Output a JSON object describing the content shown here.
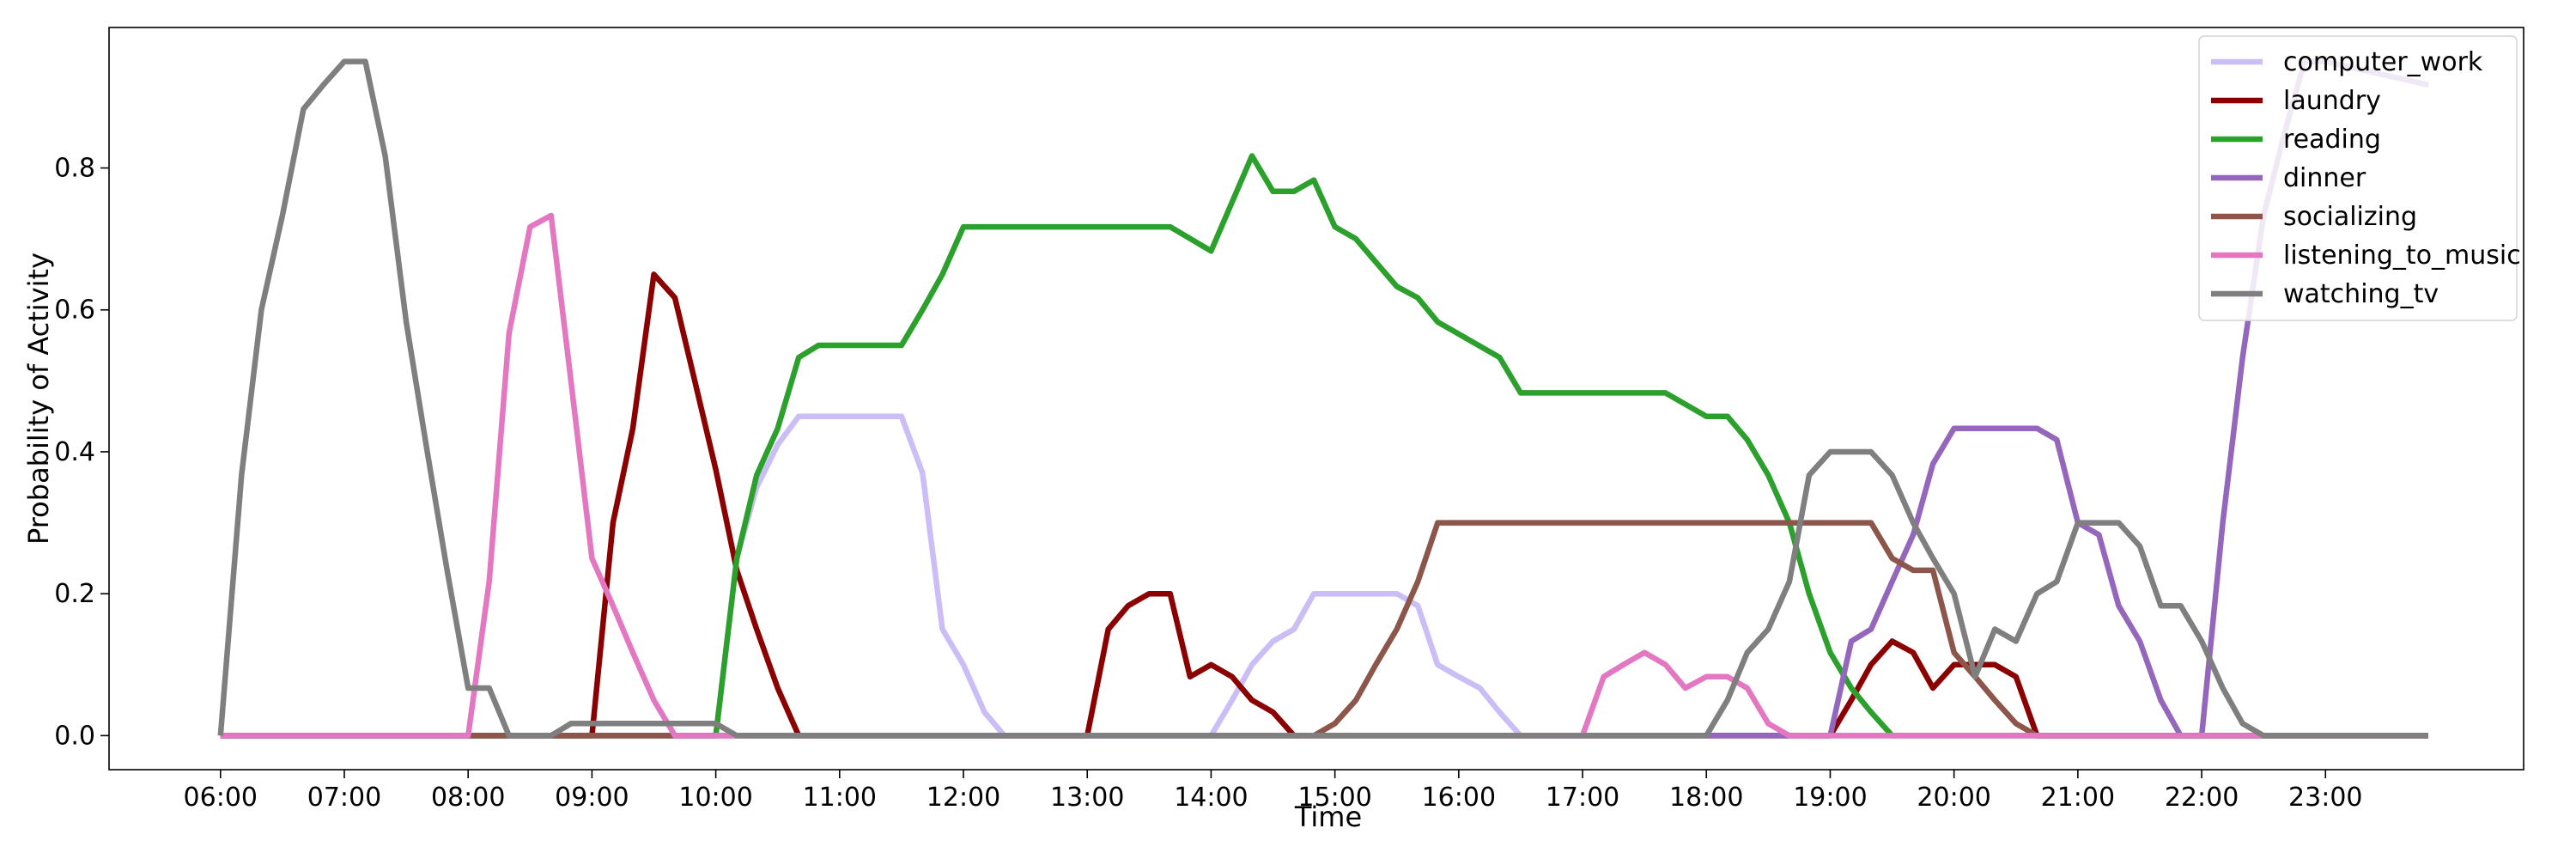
{
  "chart_data": {
    "type": "line",
    "title": "",
    "xlabel": "Time",
    "ylabel": "Probability of Activity",
    "x_unit": "hour_of_day",
    "xlim": [
      5.1,
      24.6
    ],
    "ylim": [
      -0.048,
      0.998
    ],
    "x_ticks": [
      {
        "value": 6,
        "label": "06:00"
      },
      {
        "value": 7,
        "label": "07:00"
      },
      {
        "value": 8,
        "label": "08:00"
      },
      {
        "value": 9,
        "label": "09:00"
      },
      {
        "value": 10,
        "label": "10:00"
      },
      {
        "value": 11,
        "label": "11:00"
      },
      {
        "value": 12,
        "label": "12:00"
      },
      {
        "value": 13,
        "label": "13:00"
      },
      {
        "value": 14,
        "label": "14:00"
      },
      {
        "value": 15,
        "label": "15:00"
      },
      {
        "value": 16,
        "label": "16:00"
      },
      {
        "value": 17,
        "label": "17:00"
      },
      {
        "value": 18,
        "label": "18:00"
      },
      {
        "value": 19,
        "label": "19:00"
      },
      {
        "value": 20,
        "label": "20:00"
      },
      {
        "value": 21,
        "label": "21:00"
      },
      {
        "value": 22,
        "label": "22:00"
      },
      {
        "value": 23,
        "label": "23:00"
      }
    ],
    "y_ticks": [
      {
        "value": 0.0,
        "label": "0.0"
      },
      {
        "value": 0.2,
        "label": "0.2"
      },
      {
        "value": 0.4,
        "label": "0.4"
      },
      {
        "value": 0.6,
        "label": "0.6"
      },
      {
        "value": 0.8,
        "label": "0.8"
      }
    ],
    "grid": false,
    "legend_position": "top-right",
    "series": [
      {
        "name": "computer_work",
        "color": "#cbbdf5",
        "points": [
          [
            6,
            0
          ],
          [
            10,
            0
          ],
          [
            10.17,
            0.25
          ],
          [
            10.33,
            0.35
          ],
          [
            10.5,
            0.41
          ],
          [
            10.67,
            0.45
          ],
          [
            11.5,
            0.45
          ],
          [
            11.67,
            0.37
          ],
          [
            11.83,
            0.15
          ],
          [
            12,
            0.1
          ],
          [
            12.17,
            0.033
          ],
          [
            12.33,
            0
          ],
          [
            14,
            0
          ],
          [
            14.17,
            0.05
          ],
          [
            14.33,
            0.1
          ],
          [
            14.5,
            0.133
          ],
          [
            14.67,
            0.15
          ],
          [
            14.83,
            0.2
          ],
          [
            15.5,
            0.2
          ],
          [
            15.67,
            0.183
          ],
          [
            15.83,
            0.1
          ],
          [
            16,
            0.083
          ],
          [
            16.17,
            0.067
          ],
          [
            16.33,
            0.033
          ],
          [
            16.5,
            0
          ],
          [
            23.83,
            0
          ]
        ]
      },
      {
        "name": "laundry",
        "color": "#8b0000",
        "points": [
          [
            6,
            0
          ],
          [
            9,
            0
          ],
          [
            9.17,
            0.3
          ],
          [
            9.33,
            0.433
          ],
          [
            9.5,
            0.65
          ],
          [
            9.67,
            0.617
          ],
          [
            9.83,
            0.5
          ],
          [
            10,
            0.375
          ],
          [
            10.17,
            0.233
          ],
          [
            10.33,
            0.15
          ],
          [
            10.5,
            0.067
          ],
          [
            10.67,
            0
          ],
          [
            13,
            0
          ],
          [
            13.17,
            0.15
          ],
          [
            13.33,
            0.183
          ],
          [
            13.5,
            0.2
          ],
          [
            13.67,
            0.2
          ],
          [
            13.83,
            0.083
          ],
          [
            14,
            0.1
          ],
          [
            14.17,
            0.083
          ],
          [
            14.33,
            0.05
          ],
          [
            14.5,
            0.033
          ],
          [
            14.67,
            0
          ],
          [
            19,
            0
          ],
          [
            19.17,
            0.05
          ],
          [
            19.33,
            0.1
          ],
          [
            19.5,
            0.133
          ],
          [
            19.67,
            0.117
          ],
          [
            19.83,
            0.067
          ],
          [
            20,
            0.1
          ],
          [
            20.17,
            0.1
          ],
          [
            20.33,
            0.1
          ],
          [
            20.5,
            0.083
          ],
          [
            20.67,
            0
          ],
          [
            23.83,
            0
          ]
        ]
      },
      {
        "name": "reading",
        "color": "#2ca02c",
        "points": [
          [
            6,
            0
          ],
          [
            10,
            0
          ],
          [
            10.17,
            0.25
          ],
          [
            10.33,
            0.367
          ],
          [
            10.5,
            0.433
          ],
          [
            10.67,
            0.533
          ],
          [
            10.83,
            0.55
          ],
          [
            11.5,
            0.55
          ],
          [
            11.67,
            0.6
          ],
          [
            11.83,
            0.65
          ],
          [
            12,
            0.717
          ],
          [
            13.67,
            0.717
          ],
          [
            14,
            0.683
          ],
          [
            14.33,
            0.817
          ],
          [
            14.5,
            0.767
          ],
          [
            14.67,
            0.767
          ],
          [
            14.83,
            0.783
          ],
          [
            15,
            0.717
          ],
          [
            15.17,
            0.7
          ],
          [
            15.5,
            0.633
          ],
          [
            15.67,
            0.617
          ],
          [
            15.83,
            0.583
          ],
          [
            16.33,
            0.533
          ],
          [
            16.5,
            0.483
          ],
          [
            17.67,
            0.483
          ],
          [
            18,
            0.45
          ],
          [
            18.17,
            0.45
          ],
          [
            18.33,
            0.417
          ],
          [
            18.5,
            0.367
          ],
          [
            18.67,
            0.3
          ],
          [
            18.83,
            0.2
          ],
          [
            19,
            0.117
          ],
          [
            19.17,
            0.067
          ],
          [
            19.33,
            0.033
          ],
          [
            19.5,
            0
          ],
          [
            23.83,
            0
          ]
        ]
      },
      {
        "name": "dinner",
        "color": "#9467bd",
        "points": [
          [
            6,
            0
          ],
          [
            19,
            0
          ],
          [
            19.17,
            0.133
          ],
          [
            19.33,
            0.15
          ],
          [
            19.5,
            0.217
          ],
          [
            19.67,
            0.283
          ],
          [
            19.83,
            0.383
          ],
          [
            20,
            0.433
          ],
          [
            20.67,
            0.433
          ],
          [
            20.83,
            0.417
          ],
          [
            21,
            0.3
          ],
          [
            21.17,
            0.283
          ],
          [
            21.33,
            0.183
          ],
          [
            21.5,
            0.133
          ],
          [
            21.67,
            0.05
          ],
          [
            21.83,
            0
          ],
          [
            22,
            0
          ],
          [
            22.17,
            0.3
          ],
          [
            22.33,
            0.533
          ],
          [
            22.5,
            0.733
          ],
          [
            22.67,
            0.85
          ],
          [
            22.83,
            0.95
          ],
          [
            23,
            0.95
          ],
          [
            23.83,
            0.917
          ]
        ]
      },
      {
        "name": "socializing",
        "color": "#8c564b",
        "points": [
          [
            6,
            0
          ],
          [
            14.83,
            0
          ],
          [
            15,
            0.017
          ],
          [
            15.17,
            0.05
          ],
          [
            15.33,
            0.1
          ],
          [
            15.5,
            0.15
          ],
          [
            15.67,
            0.217
          ],
          [
            15.83,
            0.3
          ],
          [
            19.33,
            0.3
          ],
          [
            19.5,
            0.25
          ],
          [
            19.67,
            0.233
          ],
          [
            19.83,
            0.233
          ],
          [
            20,
            0.117
          ],
          [
            20.17,
            0.083
          ],
          [
            20.33,
            0.05
          ],
          [
            20.5,
            0.017
          ],
          [
            20.67,
            0
          ],
          [
            23.83,
            0
          ]
        ]
      },
      {
        "name": "listening_to_music",
        "color": "#e377c2",
        "points": [
          [
            6,
            0
          ],
          [
            8,
            0
          ],
          [
            8.17,
            0.217
          ],
          [
            8.33,
            0.567
          ],
          [
            8.5,
            0.717
          ],
          [
            8.67,
            0.733
          ],
          [
            8.83,
            0.5
          ],
          [
            9,
            0.25
          ],
          [
            9.17,
            0.183
          ],
          [
            9.33,
            0.117
          ],
          [
            9.5,
            0.05
          ],
          [
            9.67,
            0
          ],
          [
            17,
            0
          ],
          [
            17.17,
            0.083
          ],
          [
            17.33,
            0.1
          ],
          [
            17.5,
            0.117
          ],
          [
            17.67,
            0.1
          ],
          [
            17.83,
            0.067
          ],
          [
            18,
            0.083
          ],
          [
            18.17,
            0.083
          ],
          [
            18.33,
            0.067
          ],
          [
            18.5,
            0.017
          ],
          [
            18.67,
            0
          ],
          [
            23.83,
            0
          ]
        ]
      },
      {
        "name": "watching_tv",
        "color": "#7f7f7f",
        "points": [
          [
            6,
            0
          ],
          [
            6.17,
            0.367
          ],
          [
            6.33,
            0.6
          ],
          [
            6.5,
            0.733
          ],
          [
            6.67,
            0.883
          ],
          [
            6.83,
            0.917
          ],
          [
            7,
            0.95
          ],
          [
            7.17,
            0.95
          ],
          [
            7.33,
            0.817
          ],
          [
            7.5,
            0.583
          ],
          [
            7.67,
            0.4
          ],
          [
            7.83,
            0.233
          ],
          [
            8,
            0.067
          ],
          [
            8.17,
            0.067
          ],
          [
            8.33,
            0
          ],
          [
            8.67,
            0
          ],
          [
            8.83,
            0.017
          ],
          [
            10,
            0.017
          ],
          [
            10.17,
            0
          ],
          [
            18,
            0
          ],
          [
            18.17,
            0.05
          ],
          [
            18.33,
            0.117
          ],
          [
            18.5,
            0.15
          ],
          [
            18.67,
            0.217
          ],
          [
            18.83,
            0.367
          ],
          [
            19,
            0.4
          ],
          [
            19.33,
            0.4
          ],
          [
            19.5,
            0.367
          ],
          [
            19.67,
            0.3
          ],
          [
            19.83,
            0.25
          ],
          [
            20,
            0.2
          ],
          [
            20.17,
            0.083
          ],
          [
            20.33,
            0.15
          ],
          [
            20.5,
            0.133
          ],
          [
            20.67,
            0.2
          ],
          [
            20.83,
            0.217
          ],
          [
            21,
            0.3
          ],
          [
            21.33,
            0.3
          ],
          [
            21.5,
            0.267
          ],
          [
            21.67,
            0.183
          ],
          [
            21.83,
            0.183
          ],
          [
            22,
            0.133
          ],
          [
            22.17,
            0.067
          ],
          [
            22.33,
            0.017
          ],
          [
            22.5,
            0
          ],
          [
            23.83,
            0
          ]
        ]
      }
    ]
  }
}
